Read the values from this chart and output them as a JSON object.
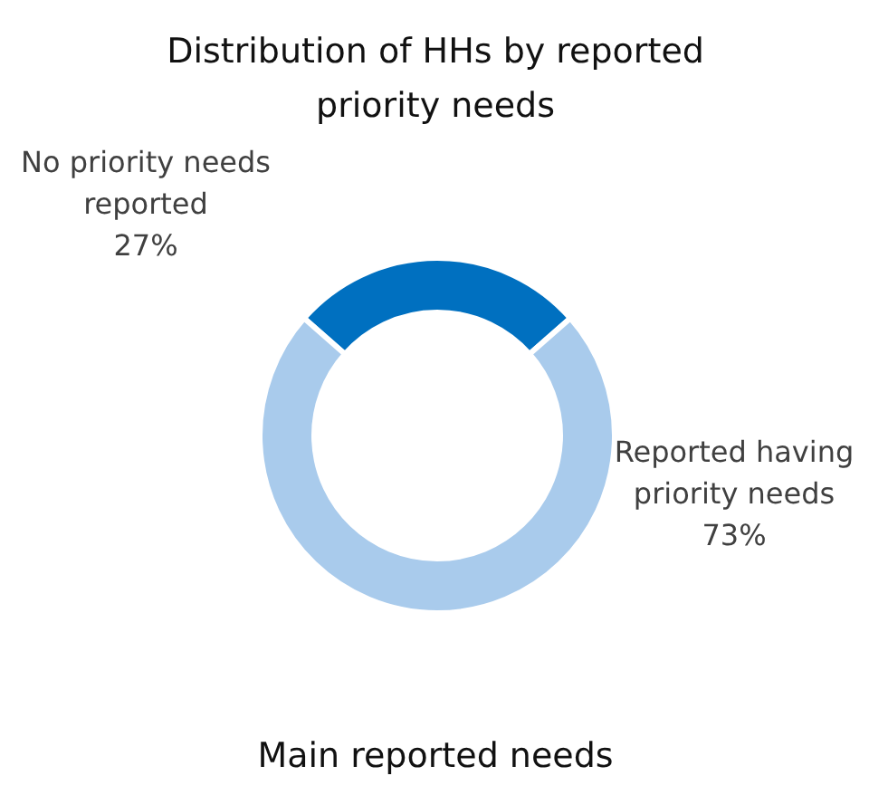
{
  "chart_data": {
    "type": "donut",
    "title": "Distribution of HHs by reported priority needs",
    "categories": [
      "No priority needs reported",
      "Reported having priority needs"
    ],
    "values": [
      27,
      73
    ],
    "colors": [
      "#0070c0",
      "#a9cbec"
    ],
    "value_labels": [
      "27%",
      "73%"
    ],
    "annotations": [
      "Main reported needs"
    ]
  }
}
